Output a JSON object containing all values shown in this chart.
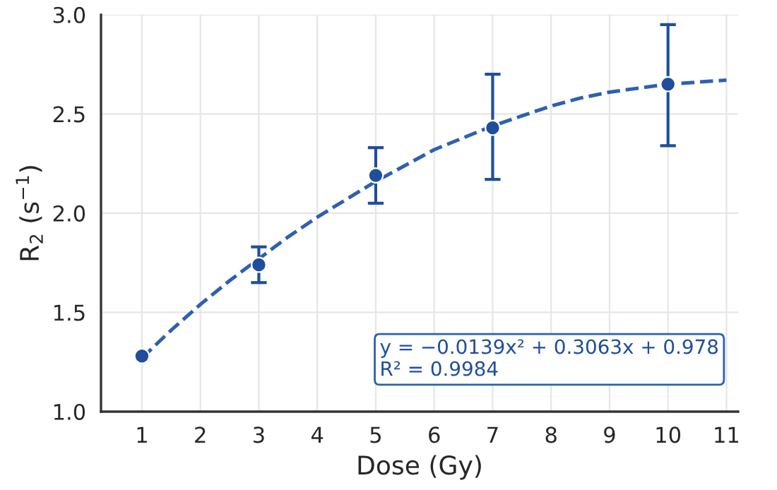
{
  "chart_data": {
    "type": "scatter",
    "xlabel": "Dose (Gy)",
    "ylabel": "R$_{2}$ (s$^{−1}$)",
    "xlim": [
      0.3,
      11.2
    ],
    "xticks": [
      1,
      2,
      3,
      4,
      5,
      6,
      7,
      8,
      9,
      10,
      11
    ],
    "ylim": [
      1.0,
      3.0
    ],
    "yticks": [
      {
        "value": 1.0,
        "label": "1.0"
      },
      {
        "value": 1.5,
        "label": "1.5"
      },
      {
        "value": 2.0,
        "label": "2.0"
      },
      {
        "value": 2.5,
        "label": "2.5"
      },
      {
        "value": 3.0,
        "label": "3.0"
      }
    ],
    "grid": true,
    "legend": false,
    "series": [
      {
        "type": "line",
        "color": "#2f5fb3",
        "line_style": "dashed",
        "marker": "none",
        "x": [
          1,
          1.5,
          2,
          2.5,
          3,
          3.5,
          4,
          4.5,
          5,
          5.5,
          6,
          6.5,
          7,
          7.5,
          8,
          8.5,
          9,
          9.5,
          10,
          10.5,
          11
        ],
        "values": [
          1.27,
          1.41,
          1.54,
          1.66,
          1.77,
          1.88,
          1.98,
          2.07,
          2.16,
          2.24,
          2.32,
          2.38,
          2.44,
          2.49,
          2.54,
          2.58,
          2.61,
          2.63,
          2.65,
          2.66,
          2.67
        ]
      },
      {
        "color": "#1f4e9c",
        "marker": "circle",
        "x": [
          1,
          3,
          5,
          7,
          10
        ],
        "values": [
          1.28,
          1.74,
          2.19,
          2.43,
          2.65
        ],
        "errors": [
          null,
          [
            1.65,
            1.83
          ],
          [
            2.05,
            2.33
          ],
          [
            2.17,
            2.7
          ],
          [
            2.34,
            2.95
          ]
        ]
      }
    ],
    "annotations": [
      "y = −0.0139x² + 0.3063x + 0.978\nR² = 0.9984"
    ]
  }
}
